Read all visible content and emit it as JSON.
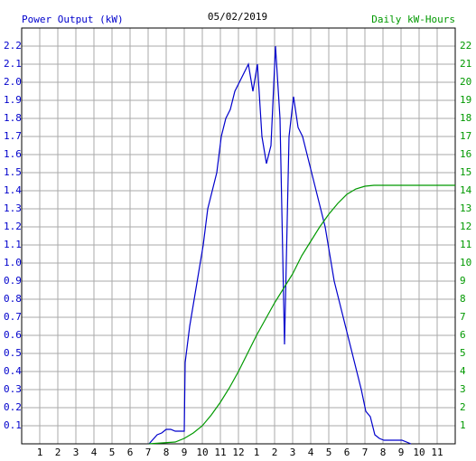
{
  "chart_data": {
    "type": "line",
    "title": "05/02/2019",
    "ylabel": "Power Output (kW)",
    "y2label": "Daily kW-Hours",
    "grid": true,
    "xlim": [
      0,
      24
    ],
    "xticks": [
      1,
      2,
      3,
      4,
      5,
      6,
      7,
      8,
      9,
      10,
      11,
      12,
      {
        "value": 13,
        "label": "1"
      },
      {
        "value": 14,
        "label": "2"
      },
      {
        "value": 15,
        "label": "3"
      },
      {
        "value": 16,
        "label": "4"
      },
      {
        "value": 17,
        "label": "5"
      },
      {
        "value": 18,
        "label": "6"
      },
      {
        "value": 19,
        "label": "7"
      },
      {
        "value": 20,
        "label": "8"
      },
      {
        "value": 21,
        "label": "9"
      },
      {
        "value": 22,
        "label": "10"
      },
      {
        "value": 23,
        "label": "11"
      }
    ],
    "ylim": [
      0,
      2.3
    ],
    "yticks": [
      0.1,
      0.2,
      0.3,
      0.4,
      0.5,
      0.6,
      0.7,
      0.8,
      0.9,
      {
        "value": 1,
        "label": "1.0"
      },
      1.1,
      1.2,
      1.3,
      1.4,
      1.5,
      1.6,
      1.7,
      1.8,
      1.9,
      {
        "value": 2,
        "label": "2.0"
      },
      2.1,
      2.2
    ],
    "y2lim": [
      0,
      23
    ],
    "y2ticks": [
      1,
      2,
      3,
      4,
      5,
      6,
      7,
      8,
      9,
      10,
      11,
      12,
      13,
      14,
      15,
      16,
      17,
      18,
      19,
      20,
      21,
      22
    ],
    "series": [
      {
        "name": "Power Output (kW)",
        "color": "#0000cc",
        "axis": "y",
        "x": [
          7.05,
          7.5,
          7.75,
          8.0,
          8.25,
          8.5,
          9.0,
          9.05,
          9.3,
          9.55,
          9.8,
          10.05,
          10.3,
          10.55,
          10.8,
          11.05,
          11.3,
          11.55,
          11.8,
          12.05,
          12.3,
          12.55,
          12.8,
          13.05,
          13.3,
          13.55,
          13.8,
          14.05,
          14.3,
          14.55,
          14.8,
          15.05,
          15.3,
          15.55,
          15.8,
          16.05,
          16.3,
          16.55,
          16.8,
          17.05,
          17.3,
          17.55,
          17.8,
          18.05,
          18.3,
          18.55,
          18.8,
          19.05,
          19.3,
          19.55,
          19.8,
          20.05,
          21.05,
          21.55
        ],
        "values": [
          0,
          0.05,
          0.06,
          0.08,
          0.08,
          0.07,
          0.07,
          0.45,
          0.65,
          0.8,
          0.95,
          1.1,
          1.3,
          1.4,
          1.5,
          1.7,
          1.8,
          1.85,
          1.95,
          2.0,
          2.05,
          2.1,
          1.95,
          2.1,
          1.7,
          1.55,
          1.65,
          2.2,
          1.8,
          0.55,
          1.7,
          1.92,
          1.75,
          1.7,
          1.6,
          1.5,
          1.4,
          1.3,
          1.2,
          1.05,
          0.9,
          0.8,
          0.7,
          0.6,
          0.5,
          0.4,
          0.3,
          0.18,
          0.15,
          0.05,
          0.03,
          0.02,
          0.02,
          0
        ]
      },
      {
        "name": "Daily kW-Hours",
        "color": "#009900",
        "axis": "y2",
        "x": [
          7.05,
          8.5,
          9.0,
          9.5,
          10.0,
          10.5,
          11.0,
          11.5,
          12.0,
          12.5,
          13.0,
          13.5,
          14.0,
          14.5,
          15.0,
          15.5,
          16.0,
          16.5,
          17.0,
          17.5,
          18.0,
          18.5,
          19.0,
          19.5,
          24.0
        ],
        "values": [
          0,
          0.1,
          0.3,
          0.6,
          1.0,
          1.6,
          2.3,
          3.1,
          4.0,
          5.0,
          6.0,
          6.9,
          7.8,
          8.6,
          9.4,
          10.4,
          11.2,
          12.0,
          12.7,
          13.3,
          13.8,
          14.1,
          14.25,
          14.3,
          14.3
        ]
      }
    ]
  }
}
